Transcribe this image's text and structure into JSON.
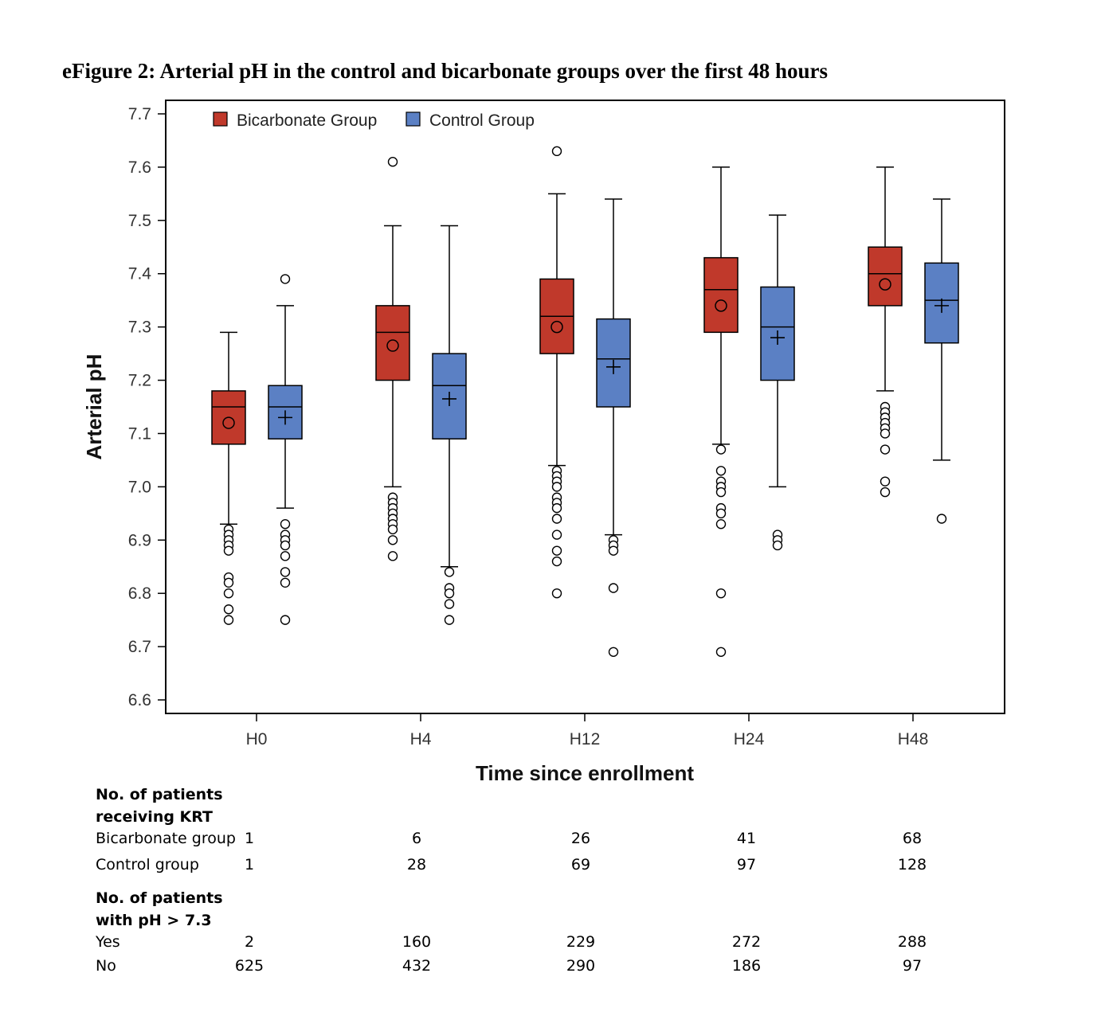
{
  "title": "eFigure 2: Arterial pH in the control and bicarbonate groups over the first 48 hours",
  "chart_data": {
    "type": "box",
    "xlabel": "Time since enrollment",
    "ylabel": "Arterial pH",
    "ylim": [
      6.6,
      7.7
    ],
    "yticks": [
      "6.6",
      "6.7",
      "6.8",
      "6.9",
      "7.0",
      "7.1",
      "7.2",
      "7.3",
      "7.4",
      "7.5",
      "7.6",
      "7.7"
    ],
    "categories": [
      "H0",
      "H4",
      "H12",
      "H24",
      "H48"
    ],
    "legend_position": "top-left",
    "series": [
      {
        "name": "Bicarbonate Group",
        "color": "#c0392b",
        "mean_marker": "circle",
        "boxes": [
          {
            "whisker_low": 6.93,
            "q1": 7.08,
            "median": 7.15,
            "q3": 7.18,
            "whisker_high": 7.29,
            "mean": 7.12,
            "outliers": [
              6.92,
              6.91,
              6.9,
              6.89,
              6.88,
              6.83,
              6.82,
              6.8,
              6.77,
              6.75
            ]
          },
          {
            "whisker_low": 7.0,
            "q1": 7.2,
            "median": 7.29,
            "q3": 7.34,
            "whisker_high": 7.49,
            "mean": 7.265,
            "outliers": [
              7.61,
              6.98,
              6.97,
              6.96,
              6.95,
              6.94,
              6.93,
              6.92,
              6.9,
              6.87
            ]
          },
          {
            "whisker_low": 7.04,
            "q1": 7.25,
            "median": 7.32,
            "q3": 7.39,
            "whisker_high": 7.55,
            "mean": 7.3,
            "outliers": [
              7.63,
              7.03,
              7.02,
              7.01,
              7.0,
              6.98,
              6.97,
              6.96,
              6.94,
              6.91,
              6.88,
              6.86,
              6.8
            ]
          },
          {
            "whisker_low": 7.08,
            "q1": 7.29,
            "median": 7.37,
            "q3": 7.43,
            "whisker_high": 7.6,
            "mean": 7.34,
            "outliers": [
              7.07,
              7.03,
              7.01,
              7.0,
              6.99,
              6.96,
              6.95,
              6.93,
              6.8,
              6.69
            ]
          },
          {
            "whisker_low": 7.18,
            "q1": 7.34,
            "median": 7.4,
            "q3": 7.45,
            "whisker_high": 7.6,
            "mean": 7.38,
            "outliers": [
              7.15,
              7.14,
              7.13,
              7.12,
              7.11,
              7.1,
              7.07,
              7.01,
              6.99
            ]
          }
        ]
      },
      {
        "name": "Control Group",
        "color": "#5b80c4",
        "mean_marker": "plus",
        "boxes": [
          {
            "whisker_low": 6.96,
            "q1": 7.09,
            "median": 7.15,
            "q3": 7.19,
            "whisker_high": 7.34,
            "mean": 7.13,
            "outliers": [
              7.39,
              6.93,
              6.91,
              6.9,
              6.89,
              6.87,
              6.84,
              6.82,
              6.75
            ]
          },
          {
            "whisker_low": 6.85,
            "q1": 7.09,
            "median": 7.19,
            "q3": 7.25,
            "whisker_high": 7.49,
            "mean": 7.165,
            "outliers": [
              6.84,
              6.81,
              6.8,
              6.78,
              6.75
            ]
          },
          {
            "whisker_low": 6.91,
            "q1": 7.15,
            "median": 7.24,
            "q3": 7.315,
            "whisker_high": 7.54,
            "mean": 7.225,
            "outliers": [
              6.9,
              6.89,
              6.88,
              6.81,
              6.69
            ]
          },
          {
            "whisker_low": 7.0,
            "q1": 7.2,
            "median": 7.3,
            "q3": 7.375,
            "whisker_high": 7.51,
            "mean": 7.28,
            "outliers": [
              6.91,
              6.9,
              6.89
            ]
          },
          {
            "whisker_low": 7.05,
            "q1": 7.27,
            "median": 7.35,
            "q3": 7.42,
            "whisker_high": 7.54,
            "mean": 7.34,
            "outliers": [
              6.94
            ]
          }
        ]
      }
    ]
  },
  "table": {
    "krt_heading": [
      "No. of patients",
      "receiving KRT"
    ],
    "krt_rows": [
      {
        "label": "Bicarbonate group",
        "values": [
          "1",
          "6",
          "26",
          "41",
          "68"
        ]
      },
      {
        "label": "Control group",
        "values": [
          "1",
          "28",
          "69",
          "97",
          "128"
        ]
      }
    ],
    "ph_heading": [
      "No. of patients",
      "with pH > 7.3"
    ],
    "ph_rows": [
      {
        "label": "Yes",
        "values": [
          "2",
          "160",
          "229",
          "272",
          "288"
        ]
      },
      {
        "label": "No",
        "values": [
          "625",
          "432",
          "290",
          "186",
          "97"
        ]
      }
    ]
  }
}
